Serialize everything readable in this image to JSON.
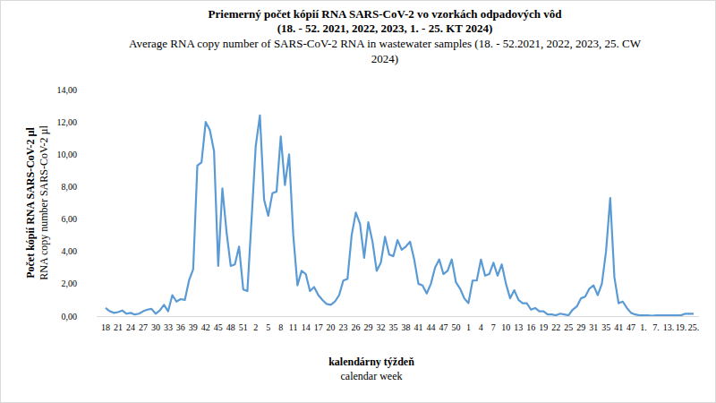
{
  "chart_data": {
    "type": "line",
    "title": [
      "Priemerný počet kópií RNA SARS-CoV-2 vo vzorkách odpadových vôd",
      "(18.  - 52. 2021, 2022, 2023, 1. - 25. KT 2024)"
    ],
    "subtitle": [
      "Average RNA copy number of SARS-CoV-2 RNA in wastewater samples (18. - 52.2021, 2022, 2023, 25. CW",
      "2024)"
    ],
    "y_label": [
      "Počet kópií RNA SARS-CoV-2 µl",
      "RNA copy number SARS-CoV-2 µl"
    ],
    "x_label": [
      "kalendárny týždeň",
      "calendar week"
    ],
    "categories": [
      "18",
      null,
      null,
      "21",
      null,
      null,
      "24",
      null,
      null,
      "27",
      null,
      null,
      "30",
      null,
      null,
      "33",
      null,
      null,
      "36",
      null,
      null,
      "39",
      null,
      null,
      "42",
      null,
      null,
      "45",
      null,
      null,
      "48",
      null,
      null,
      "51",
      null,
      null,
      "2",
      null,
      null,
      "5",
      null,
      null,
      "8",
      null,
      null,
      "11",
      null,
      null,
      "14",
      null,
      null,
      "17",
      null,
      null,
      "20",
      null,
      null,
      "23",
      null,
      null,
      "26",
      null,
      null,
      "29",
      null,
      null,
      "32",
      null,
      null,
      "35",
      null,
      null,
      "38",
      null,
      null,
      "41",
      null,
      null,
      "44",
      null,
      null,
      "47",
      null,
      null,
      "50",
      null,
      null,
      "1",
      null,
      null,
      "4",
      null,
      null,
      "7",
      null,
      null,
      "10",
      null,
      null,
      "13",
      null,
      null,
      "16",
      null,
      null,
      "19",
      null,
      null,
      "22",
      null,
      null,
      "25",
      null,
      null,
      "29",
      null,
      null,
      "31",
      null,
      null,
      "35",
      null,
      null,
      "41",
      null,
      null,
      "47",
      null,
      null,
      "1.",
      null,
      null,
      "7.",
      null,
      null,
      "13.",
      null,
      null,
      "19.",
      null,
      null,
      "25."
    ],
    "values": [
      0.5,
      0.3,
      0.2,
      0.25,
      0.35,
      0.15,
      0.2,
      0.1,
      0.15,
      0.3,
      0.4,
      0.45,
      0.15,
      0.35,
      0.7,
      0.3,
      1.3,
      0.9,
      1.05,
      1.0,
      2.2,
      2.9,
      9.3,
      9.5,
      12.0,
      11.5,
      10.2,
      3.1,
      7.9,
      5.2,
      3.1,
      3.2,
      4.3,
      1.65,
      1.55,
      6.0,
      10.5,
      12.4,
      7.2,
      6.2,
      7.6,
      7.7,
      11.1,
      8.1,
      10.0,
      5.0,
      1.9,
      2.8,
      2.6,
      1.55,
      1.8,
      1.3,
      1.0,
      0.75,
      0.7,
      0.9,
      1.3,
      2.2,
      2.3,
      5.0,
      6.4,
      5.7,
      3.6,
      5.8,
      4.6,
      2.8,
      3.3,
      4.9,
      3.8,
      3.7,
      4.7,
      4.1,
      4.3,
      4.6,
      3.5,
      2.0,
      1.9,
      1.4,
      2.0,
      3.0,
      3.5,
      2.6,
      2.8,
      3.5,
      2.1,
      1.7,
      1.1,
      0.8,
      2.2,
      2.2,
      3.5,
      2.5,
      2.6,
      3.3,
      2.5,
      3.2,
      2.0,
      1.1,
      1.6,
      1.0,
      0.8,
      0.8,
      0.4,
      0.5,
      0.3,
      0.3,
      0.1,
      0.1,
      0.05,
      0.15,
      0.1,
      0.05,
      0.4,
      0.6,
      1.1,
      1.2,
      1.7,
      1.9,
      1.3,
      2.0,
      4.0,
      7.3,
      2.4,
      0.8,
      0.9,
      0.5,
      0.2,
      0.1,
      0.05,
      0.05,
      0.05,
      0.02,
      0.05,
      0.05,
      0.05,
      0.05,
      0.05,
      0.05,
      0.05,
      0.15,
      0.15,
      0.15
    ],
    "color": "#5b9bd5",
    "ylim": [
      0,
      14
    ],
    "yticks": [
      {
        "value": 0,
        "label": "0,00"
      },
      {
        "value": 2,
        "label": "2,00"
      },
      {
        "value": 4,
        "label": "4,00"
      },
      {
        "value": 6,
        "label": "6,00"
      },
      {
        "value": 8,
        "label": "8,00"
      },
      {
        "value": 10,
        "label": "10,00"
      },
      {
        "value": 12,
        "label": "12,00"
      },
      {
        "value": 14,
        "label": "14,00"
      }
    ],
    "grid": false
  }
}
